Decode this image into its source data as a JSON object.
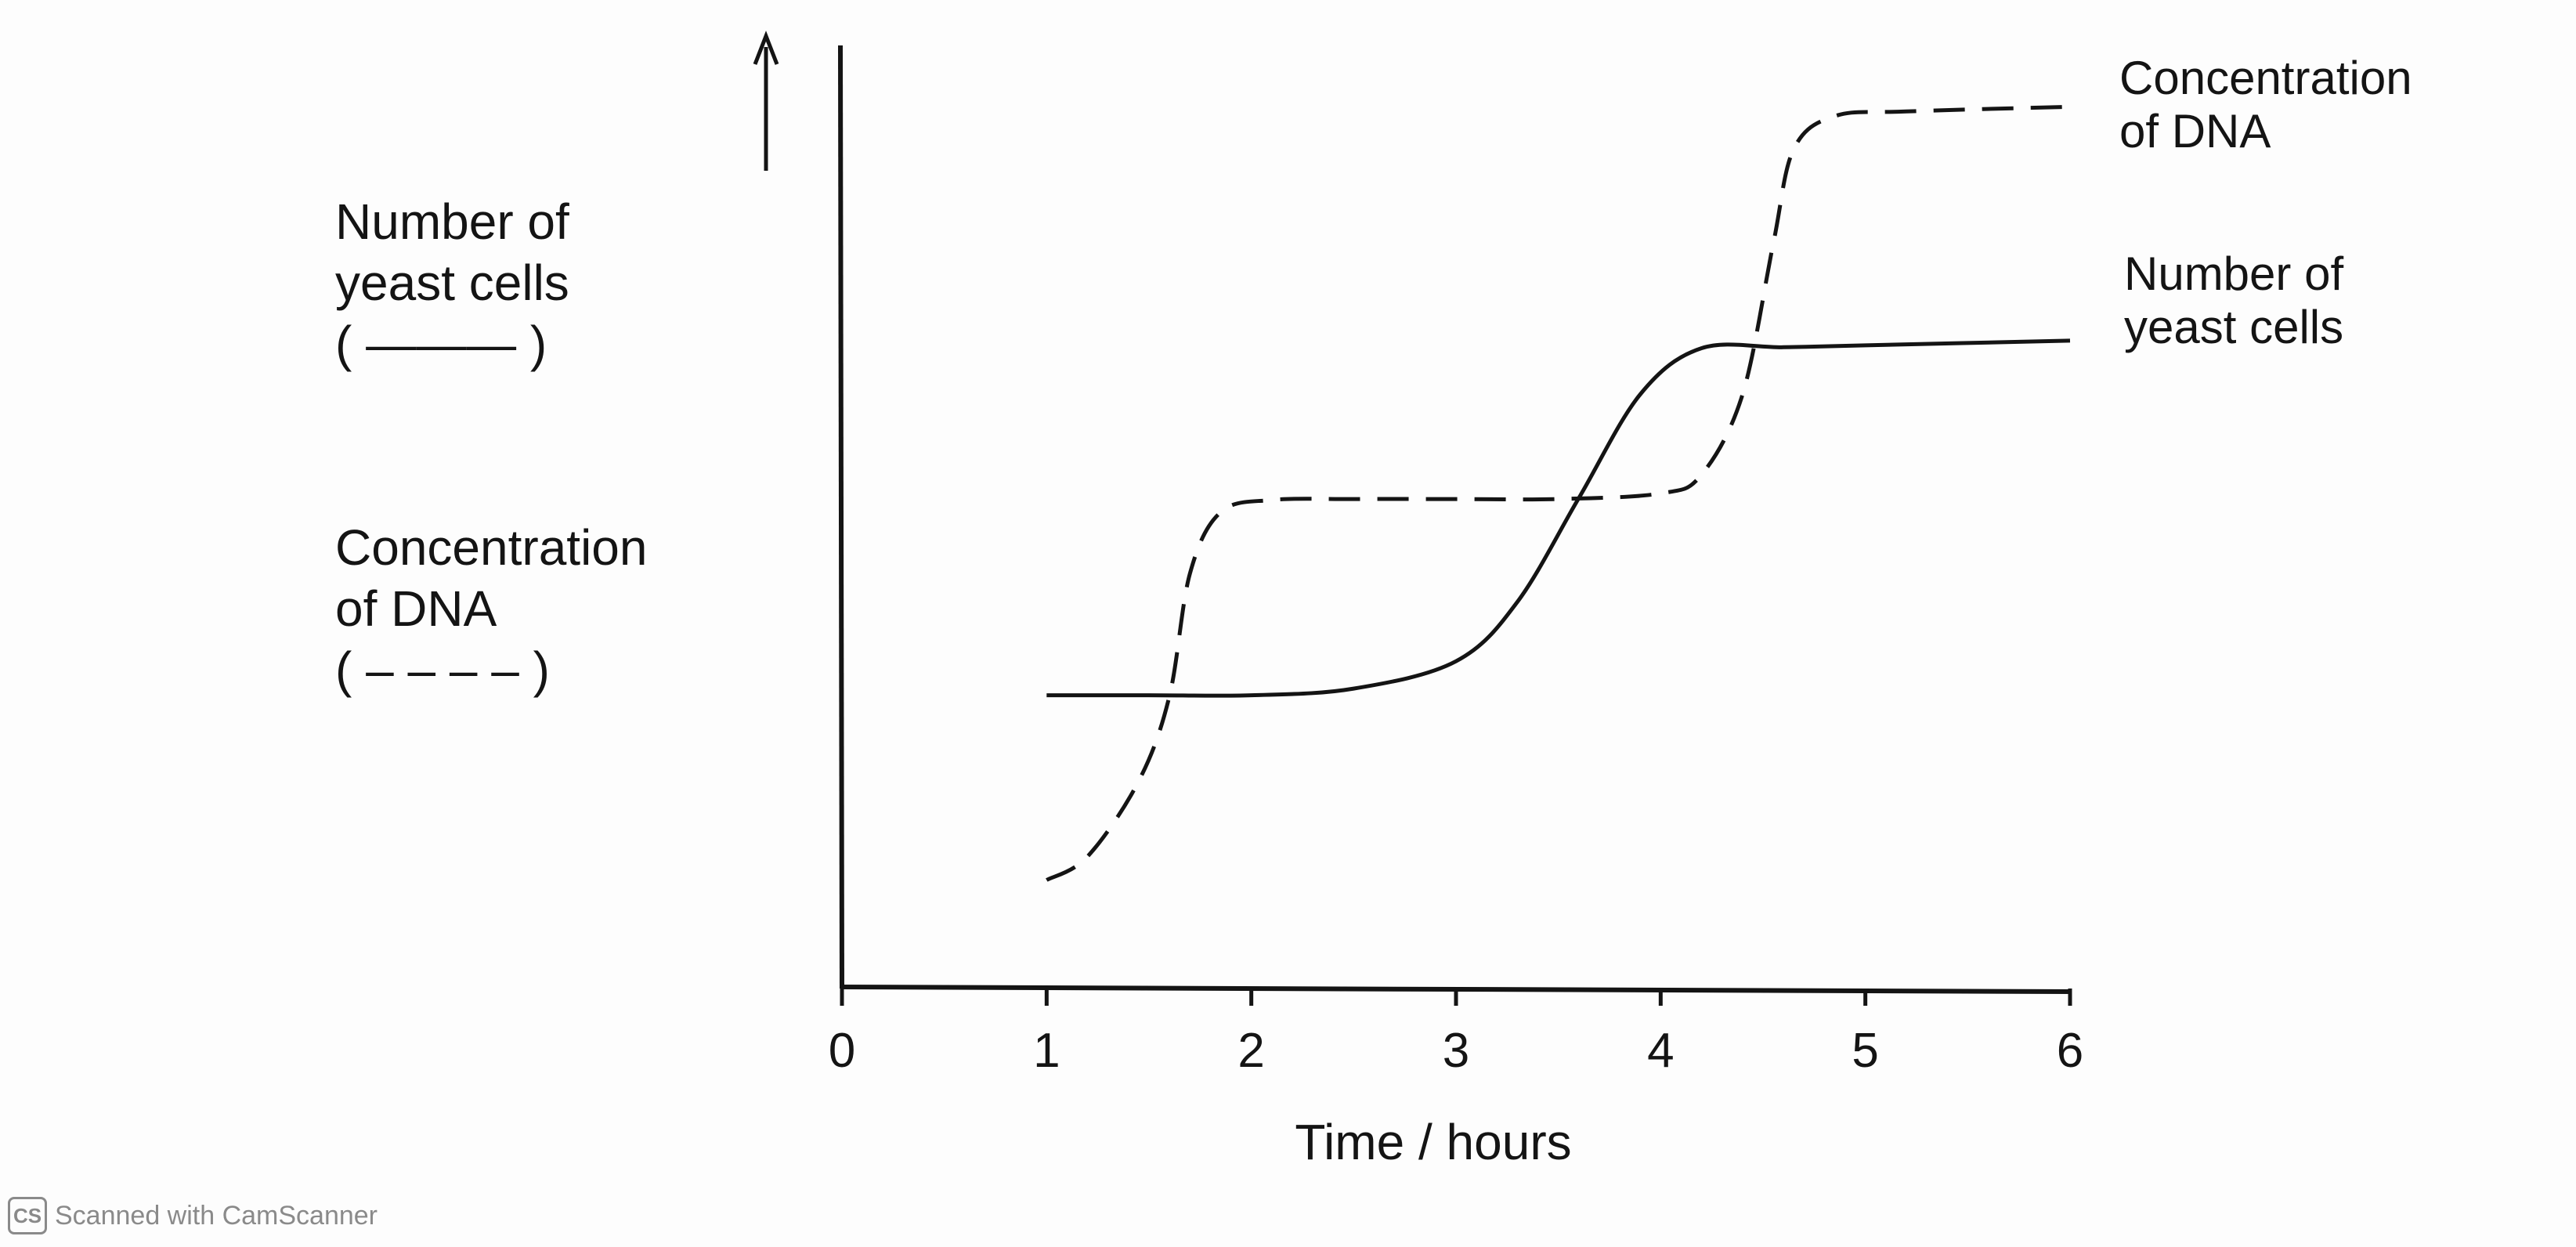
{
  "chart_data": {
    "type": "line",
    "xlabel": "Time / hours",
    "x_ticks": [
      "0",
      "1",
      "2",
      "3",
      "4",
      "5",
      "6"
    ],
    "xlim": [
      0,
      6
    ],
    "y_axis": {
      "numeric_scale": false,
      "arrow": "up",
      "labels": [
        {
          "lines": [
            "Number of",
            "yeast cells"
          ],
          "key": "( ——— )"
        },
        {
          "lines": [
            "Concentration",
            "of DNA"
          ],
          "key": "( – – – – )"
        }
      ]
    },
    "grid": false,
    "series": [
      {
        "name": "Number of yeast cells",
        "end_label": [
          "Number of",
          "yeast cells"
        ],
        "style": "solid",
        "points": [
          [
            1.0,
            0.311
          ],
          [
            1.5,
            0.311
          ],
          [
            2.0,
            0.311
          ],
          [
            2.5,
            0.318
          ],
          [
            3.0,
            0.347
          ],
          [
            3.3,
            0.41
          ],
          [
            3.6,
            0.52
          ],
          [
            3.9,
            0.63
          ],
          [
            4.2,
            0.679
          ],
          [
            4.6,
            0.68
          ],
          [
            5.0,
            0.682
          ],
          [
            6.0,
            0.687
          ]
        ]
      },
      {
        "name": "Concentration of DNA",
        "end_label": [
          "Concentration",
          "of DNA"
        ],
        "style": "dashed",
        "points": [
          [
            1.0,
            0.115
          ],
          [
            1.2,
            0.14
          ],
          [
            1.45,
            0.22
          ],
          [
            1.6,
            0.31
          ],
          [
            1.7,
            0.44
          ],
          [
            1.85,
            0.505
          ],
          [
            2.1,
            0.518
          ],
          [
            2.5,
            0.519
          ],
          [
            3.0,
            0.519
          ],
          [
            3.5,
            0.519
          ],
          [
            4.0,
            0.525
          ],
          [
            4.2,
            0.545
          ],
          [
            4.4,
            0.63
          ],
          [
            4.55,
            0.79
          ],
          [
            4.65,
            0.89
          ],
          [
            4.85,
            0.925
          ],
          [
            5.2,
            0.93
          ],
          [
            6.0,
            0.935
          ]
        ]
      }
    ]
  },
  "watermark": {
    "logo_text": "CS",
    "text": "Scanned with CamScanner"
  }
}
